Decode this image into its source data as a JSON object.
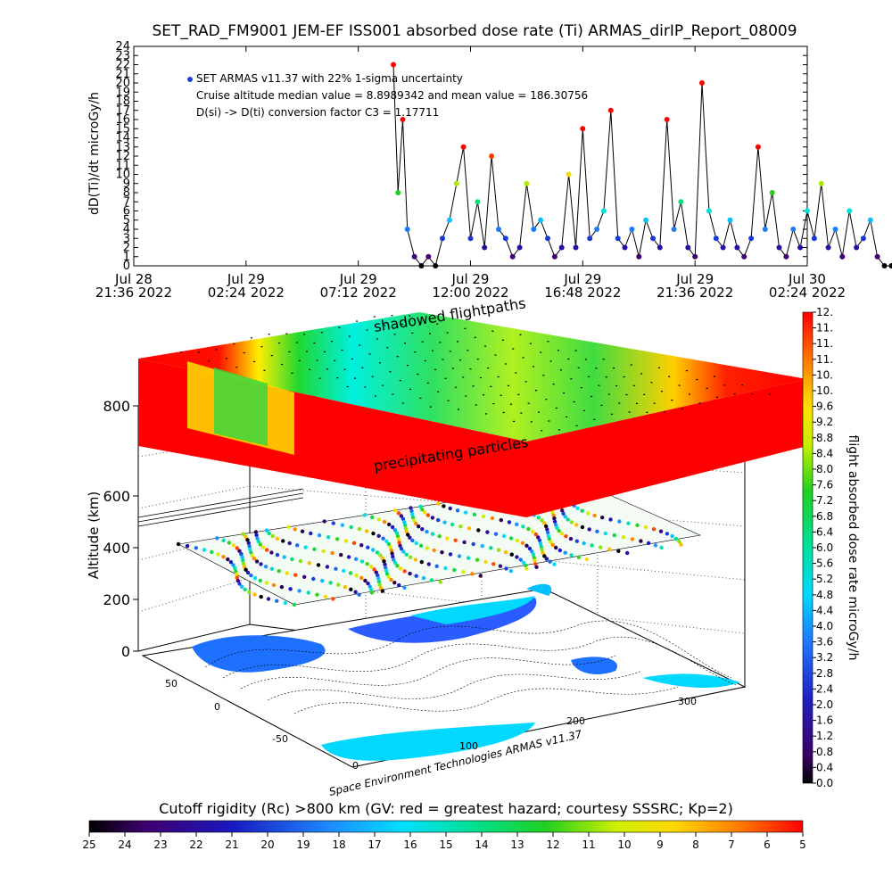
{
  "chart_data": [
    {
      "type": "scatter",
      "title": "SET_RAD_FM9001  JEM-EF ISS001 absorbed dose rate (Ti) ARMAS_dirIP_Report_08009",
      "ylabel": "dD(Ti)/dt microGy/h",
      "ylim": [
        0,
        24
      ],
      "yticks": [
        "0",
        "1",
        "2",
        "3",
        "4",
        "5",
        "6",
        "7",
        "8",
        "9",
        "10",
        "11",
        "12",
        "13",
        "14",
        "15",
        "16",
        "17",
        "18",
        "19",
        "20",
        "21",
        "22",
        "23",
        "24"
      ],
      "xlim": [
        "2022-07-28 21:36",
        "2022-07-30 02:24"
      ],
      "xticks": [
        {
          "line1": "Jul 28",
          "line2": "21:36 2022"
        },
        {
          "line1": "Jul 29",
          "line2": "02:24 2022"
        },
        {
          "line1": "Jul 29",
          "line2": "07:12 2022"
        },
        {
          "line1": "Jul 29",
          "line2": "12:00 2022"
        },
        {
          "line1": "Jul 29",
          "line2": "16:48 2022"
        },
        {
          "line1": "Jul 29",
          "line2": "21:36 2022"
        },
        {
          "line1": "Jul 30",
          "line2": "02:24 2022"
        }
      ],
      "annotations": [
        "SET ARMAS v11.37 with 22% 1-sigma uncertainty",
        "Cruise altitude median value = 8.8989342 and mean value = 186.30756",
        "D(si) -> D(ti) conversion factor C3 =  1.17711"
      ],
      "x_hours": [
        11.1,
        11.3,
        11.5,
        11.7,
        12.0,
        12.3,
        12.6,
        12.9,
        13.2,
        13.5,
        13.8,
        14.1,
        14.4,
        14.7,
        15.0,
        15.3,
        15.6,
        15.9,
        16.2,
        16.5,
        16.8,
        17.1,
        17.4,
        17.7,
        18.0,
        18.3,
        18.6,
        18.9,
        19.2,
        19.5,
        19.8,
        20.1,
        20.4,
        20.7,
        21.0,
        21.3,
        21.6,
        21.9,
        22.2,
        22.5,
        22.8,
        23.1,
        23.4,
        23.7,
        24.0,
        24.3,
        24.6,
        24.9,
        25.2,
        25.5,
        25.8,
        26.1,
        26.4,
        26.7,
        27.0,
        27.3,
        27.6,
        27.9,
        28.2,
        28.5,
        28.8,
        29.1,
        29.4,
        29.7,
        30.0,
        30.3,
        30.6,
        30.9,
        31.2,
        31.5,
        31.8,
        32.1,
        32.4,
        32.7,
        33.0,
        33.3,
        33.6,
        33.9,
        34.2,
        34.5,
        34.8,
        35.1,
        35.4
      ],
      "values": [
        22,
        8,
        16,
        4,
        1,
        0,
        1,
        0,
        3,
        5,
        9,
        13,
        3,
        7,
        2,
        12,
        4,
        3,
        1,
        2,
        9,
        4,
        5,
        3,
        1,
        2,
        10,
        2,
        15,
        3,
        4,
        6,
        17,
        3,
        2,
        4,
        1,
        5,
        3,
        2,
        16,
        4,
        7,
        2,
        1,
        20,
        6,
        3,
        2,
        5,
        2,
        1,
        3,
        13,
        4,
        8,
        2,
        1,
        4,
        2,
        6,
        3,
        9,
        2,
        4,
        1,
        6,
        2,
        3,
        5,
        1,
        0,
        0,
        0,
        2,
        3,
        8,
        12,
        0,
        5,
        4,
        13,
        2
      ]
    },
    {
      "type": "scatter",
      "ylabel": "Altitude (km)",
      "zticks": [
        "0",
        "200",
        "400",
        "600",
        "800"
      ],
      "lon_ticks": [
        "0",
        "100",
        "200",
        "300"
      ],
      "lat_ticks": [
        "-50",
        "0",
        "50"
      ],
      "labels": [
        "shadowed flightpaths",
        "precipitating particles"
      ],
      "credit": "Space Environment Technologies ARMAS v11.37",
      "colorbar": {
        "label": "flight absorbed dose rate microGy/h",
        "ticks": [
          "0.0",
          "0.4",
          "0.8",
          "1.2",
          "1.6",
          "2.0",
          "2.4",
          "2.8",
          "3.2",
          "3.6",
          "4.0",
          "4.4",
          "4.8",
          "5.2",
          "5.6",
          "6.0",
          "6.4",
          "6.8",
          "7.2",
          "7.6",
          "8.0",
          "8.4",
          "8.8",
          "9.2",
          "9.6",
          "10.",
          "10.",
          "11.",
          "11.",
          "11.",
          "12."
        ]
      }
    },
    {
      "type": "heatmap",
      "title": "Cutoff rigidity (Rc) >800 km (GV: red = greatest hazard; courtesy SSSRC; Kp=2)",
      "ticks": [
        "25",
        "24",
        "23",
        "22",
        "21",
        "20",
        "19",
        "18",
        "17",
        "16",
        "15",
        "14",
        "13",
        "12",
        "11",
        "10",
        "9",
        "8",
        "7",
        "6",
        "5"
      ]
    }
  ]
}
